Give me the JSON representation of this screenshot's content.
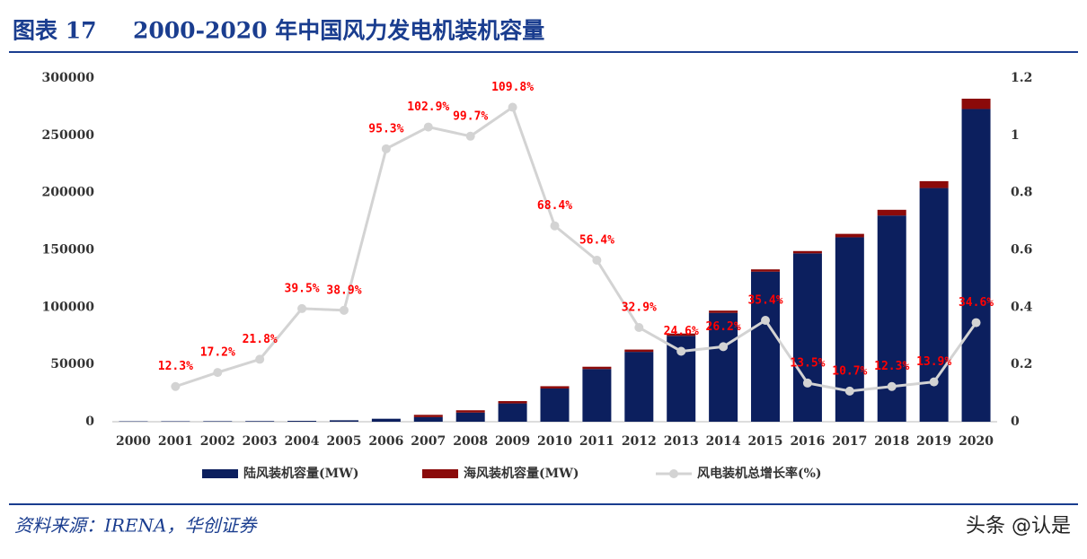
{
  "header": {
    "label": "图表 17",
    "watermark": "头条 @认是"
  },
  "chart_data": {
    "type": "bar",
    "title": "2000-2020 年中国风力发电机装机容量",
    "categories": [
      "2000",
      "2001",
      "2002",
      "2003",
      "2004",
      "2005",
      "2006",
      "2007",
      "2008",
      "2009",
      "2010",
      "2011",
      "2012",
      "2013",
      "2014",
      "2015",
      "2016",
      "2017",
      "2018",
      "2019",
      "2020"
    ],
    "series": [
      {
        "name": "陆风装机容量(MW)",
        "type": "bar",
        "color": "#0c1f5e",
        "values": [
          350,
          400,
          470,
          570,
          760,
          1260,
          2600,
          4000,
          8000,
          16000,
          29000,
          46000,
          61000,
          75000,
          95000,
          131000,
          147000,
          161000,
          180000,
          204000,
          273000
        ]
      },
      {
        "name": "海风装机容量(MW)",
        "type": "bar",
        "color": "#8b0a0a",
        "values": [
          0,
          0,
          0,
          0,
          0,
          0,
          0,
          2000,
          2000,
          2000,
          2000,
          2000,
          2000,
          2000,
          2000,
          2000,
          2000,
          3000,
          5000,
          6000,
          9000
        ]
      },
      {
        "name": "风电装机总增长率(%)",
        "type": "line",
        "axis": "y2",
        "color": "#d3d3d3",
        "label_color": "#ff0000",
        "values": [
          null,
          0.123,
          0.172,
          0.218,
          0.395,
          0.389,
          0.953,
          1.029,
          0.997,
          1.098,
          0.684,
          0.564,
          0.329,
          0.246,
          0.262,
          0.354,
          0.135,
          0.107,
          0.123,
          0.139,
          0.346
        ],
        "value_labels": [
          null,
          "12.3%",
          "17.2%",
          "21.8%",
          "39.5%",
          "38.9%",
          "95.3%",
          "102.9%",
          "99.7%",
          "109.8%",
          "68.4%",
          "56.4%",
          "32.9%",
          "24.6%",
          "26.2%",
          "35.4%",
          "13.5%",
          "10.7%",
          "12.3%",
          "13.9%",
          "34.6%"
        ]
      }
    ],
    "ylim": [
      0,
      300000
    ],
    "yticks": [
      0,
      50000,
      100000,
      150000,
      200000,
      250000,
      300000
    ],
    "y2lim": [
      0,
      1.2
    ],
    "y2ticks": [
      0,
      0.2,
      0.4,
      0.6,
      0.8,
      1,
      1.2
    ],
    "source": "资料来源：IRENA，华创证券"
  }
}
